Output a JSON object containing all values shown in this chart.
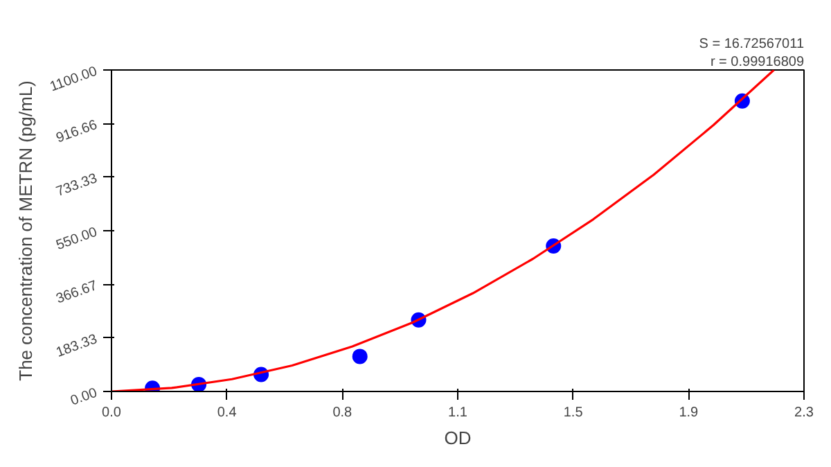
{
  "chart_data": {
    "type": "scatter",
    "xlabel": "OD",
    "ylabel": "The concentration of METRN (pg/mL)",
    "annotations": [
      "S = 16.72567011",
      "r = 0.99916809"
    ],
    "xlim": [
      0,
      2.3
    ],
    "ylim": [
      0,
      1100
    ],
    "xticks": [
      {
        "value": 0,
        "label": "0.0"
      },
      {
        "value": 0.3833,
        "label": "0.4"
      },
      {
        "value": 0.7667,
        "label": "0.8"
      },
      {
        "value": 1.15,
        "label": "1.1"
      },
      {
        "value": 1.5333,
        "label": "1.5"
      },
      {
        "value": 1.9167,
        "label": "1.9"
      },
      {
        "value": 2.3,
        "label": "2.3"
      }
    ],
    "yticks": [
      {
        "value": 0,
        "label": "0.00"
      },
      {
        "value": 183.33,
        "label": "183.33"
      },
      {
        "value": 366.67,
        "label": "366.67"
      },
      {
        "value": 550,
        "label": "550.00"
      },
      {
        "value": 733.33,
        "label": "733.33"
      },
      {
        "value": 916.66,
        "label": "916.66"
      },
      {
        "value": 1100,
        "label": "1100.00"
      }
    ],
    "grid": false,
    "series": [
      {
        "marker": "circle",
        "color": "#0000ff",
        "x": [
          0.136,
          0.29,
          0.497,
          0.825,
          1.02,
          1.468,
          2.095
        ],
        "values": [
          11,
          24,
          58,
          120,
          245,
          498,
          994
        ]
      },
      {
        "type": "line",
        "marker": "none",
        "line_style": "solid",
        "color": "#ff0000",
        "x": [
          0,
          0.2,
          0.4,
          0.6,
          0.8,
          1.0,
          1.2,
          1.4,
          1.6,
          1.8,
          2.0,
          2.2
        ],
        "values": [
          0,
          12,
          42,
          89,
          154,
          236,
          336,
          454,
          589,
          741,
          912,
          1100
        ]
      }
    ]
  }
}
